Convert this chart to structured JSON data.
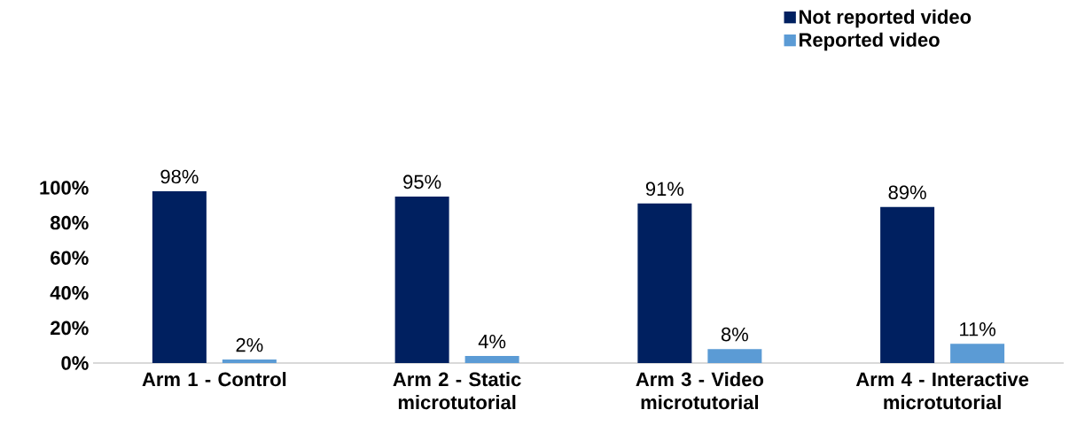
{
  "chart_data": {
    "type": "bar",
    "categories": [
      "Arm 1 - Control",
      "Arm 2 - Static microtutorial",
      "Arm 3 - Video microtutorial",
      "Arm 4 - Interactive microtutorial"
    ],
    "series": [
      {
        "name": "Not reported video",
        "color": "#002060",
        "values": [
          98,
          95,
          91,
          89
        ],
        "value_labels": [
          "98%",
          "95%",
          "91%",
          "89%"
        ]
      },
      {
        "name": "Reported video",
        "color": "#5b9bd5",
        "values": [
          2,
          4,
          8,
          11
        ],
        "value_labels": [
          "2%",
          "4%",
          "8%",
          "11%"
        ]
      }
    ],
    "ylim": [
      0,
      100
    ],
    "yticks": [
      {
        "value": 0,
        "label": "0%"
      },
      {
        "value": 20,
        "label": "20%"
      },
      {
        "value": 40,
        "label": "40%"
      },
      {
        "value": 60,
        "label": "60%"
      },
      {
        "value": 80,
        "label": "80%"
      },
      {
        "value": 100,
        "label": "100%"
      }
    ],
    "grid": false,
    "legend": "top right"
  }
}
